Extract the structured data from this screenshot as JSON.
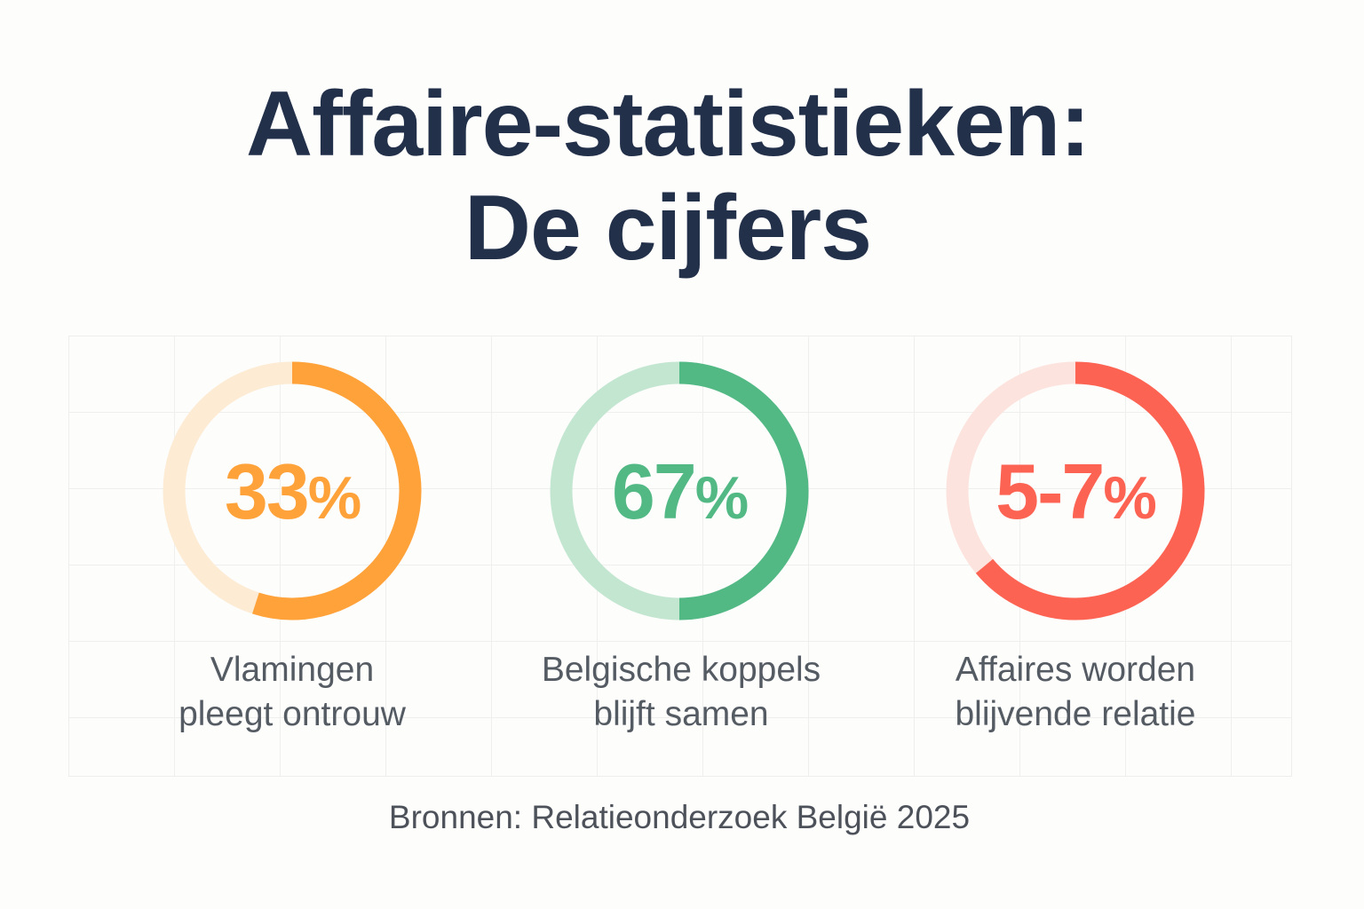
{
  "title_line1": "Affaire-statistieken:",
  "title_line2": "De cijfers",
  "chart_data": {
    "type": "donut",
    "items": [
      {
        "value_text": "33",
        "unit": "%",
        "label_line1": "Vlamingen",
        "label_line2": "pleegt ontrouw",
        "ring_fill": 0.55,
        "color": "#ffa23a",
        "track_color": "#fdebd3"
      },
      {
        "value_text": "67",
        "unit": "%",
        "label_line1": "Belgische koppels",
        "label_line2": "blijft samen",
        "ring_fill": 0.5,
        "color": "#52b985",
        "track_color": "#c3e6d1"
      },
      {
        "value_text": "5-7",
        "unit": "%",
        "label_line1": "Affaires worden",
        "label_line2": "blijvende relatie",
        "ring_fill": 0.64,
        "color": "#fd6352",
        "track_color": "#fde3dd"
      }
    ]
  },
  "footer": "Bronnen: Relatieonderzoek België 2025"
}
